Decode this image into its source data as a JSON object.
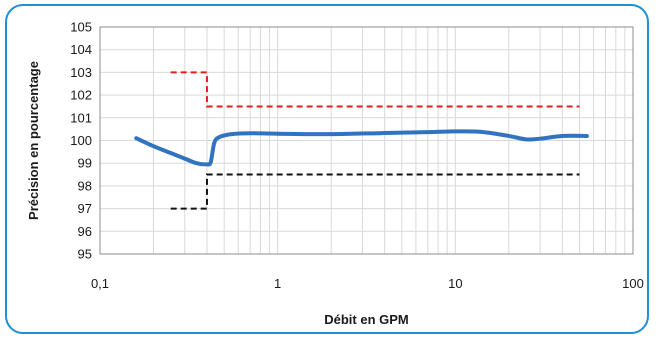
{
  "chart_data": {
    "type": "line",
    "xlabel": "Débit en GPM",
    "ylabel": "Précision en pourcentage",
    "x_scale": "log",
    "xlim": [
      0.1,
      100
    ],
    "ylim": [
      95,
      105
    ],
    "x_tick_labels": [
      {
        "value": 0.1,
        "label": "0,1"
      },
      {
        "value": 1,
        "label": "1"
      },
      {
        "value": 10,
        "label": "10"
      },
      {
        "value": 100,
        "label": "100"
      }
    ],
    "y_ticks": [
      95,
      96,
      97,
      98,
      99,
      100,
      101,
      102,
      103,
      104,
      105
    ],
    "grid": true,
    "series": [
      {
        "color": "#2f73c1",
        "style": "solid",
        "points": [
          [
            0.16,
            100.1
          ],
          [
            0.2,
            99.75
          ],
          [
            0.25,
            99.45
          ],
          [
            0.3,
            99.2
          ],
          [
            0.35,
            99.0
          ],
          [
            0.4,
            98.95
          ],
          [
            0.42,
            99.05
          ],
          [
            0.44,
            99.9
          ],
          [
            0.47,
            100.15
          ],
          [
            0.55,
            100.28
          ],
          [
            0.7,
            100.32
          ],
          [
            1.0,
            100.3
          ],
          [
            2.0,
            100.28
          ],
          [
            4.0,
            100.33
          ],
          [
            7.0,
            100.37
          ],
          [
            10,
            100.4
          ],
          [
            14,
            100.38
          ],
          [
            20,
            100.2
          ],
          [
            25,
            100.05
          ],
          [
            30,
            100.08
          ],
          [
            40,
            100.2
          ],
          [
            55,
            100.2
          ]
        ]
      },
      {
        "color": "#e0201f",
        "style": "dashed",
        "points": [
          [
            0.25,
            103.0
          ],
          [
            0.4,
            103.0
          ],
          [
            0.4,
            101.5
          ],
          [
            50,
            101.5
          ]
        ]
      },
      {
        "color": "#111111",
        "style": "dashed",
        "points": [
          [
            0.25,
            97.0
          ],
          [
            0.4,
            97.0
          ],
          [
            0.4,
            98.5
          ],
          [
            50,
            98.5
          ]
        ]
      }
    ]
  },
  "colors": {
    "frame": "#1f8fd6",
    "grid": "#d9d9d9",
    "plot_border": "#8c8c8c"
  }
}
